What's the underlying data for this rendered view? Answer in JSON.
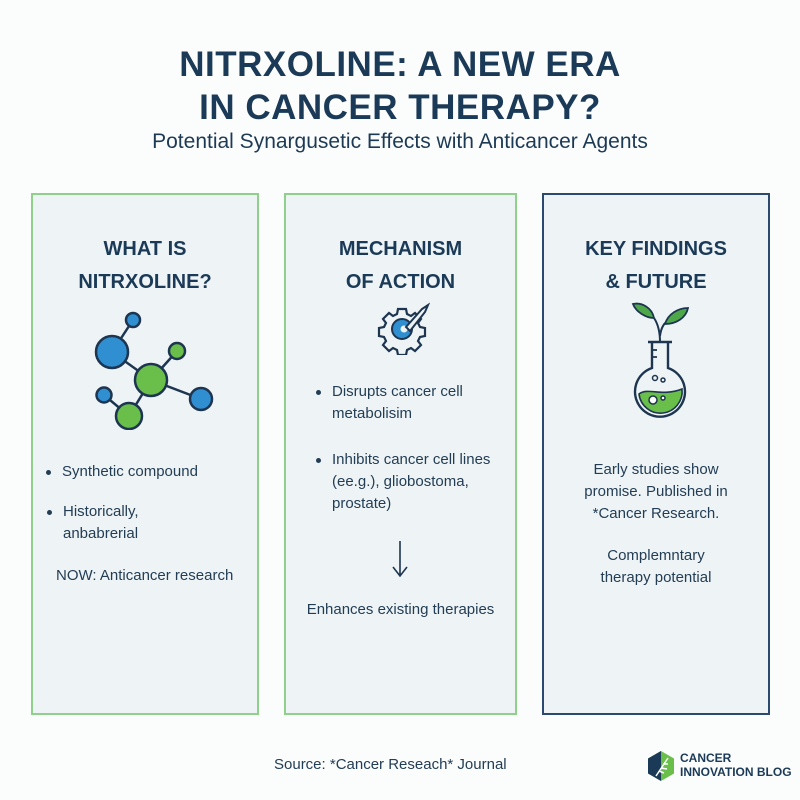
{
  "header": {
    "title_line1": "NITRXOLINE: A NEW ERA",
    "title_line2": "IN CANCER THERAPY?",
    "subtitle": "Potential Synargusetic Effects with Anticancer Agents"
  },
  "panels": [
    {
      "heading_line1": "WHAT IS",
      "heading_line2": "NITRXOLINE?",
      "icon": "molecule-icon",
      "bullets": [
        "Synthetic compound",
        "Historically,",
        "anbabrerial"
      ],
      "note": "NOW: Anticancer research"
    },
    {
      "heading_line1": "MECHANISM",
      "heading_line2": "OF ACTION",
      "icon": "gear-icon",
      "bullets": [
        "Disrupts cancer cell",
        "metabolisim",
        "Inhibits cancer cell lines",
        "(ee.g.), gliobostoma,",
        "prostate)"
      ],
      "arrow": "arrow-down-icon",
      "note": "Enhances existing therapies"
    },
    {
      "heading_line1": "KEY FINDINGS",
      "heading_line2": "& FUTURE",
      "icon": "flask-plant-icon",
      "text1": [
        "Early studies show",
        "promise. Published in",
        "*Cancer Research."
      ],
      "text2": [
        "Complemntary",
        "therapy potential"
      ]
    }
  ],
  "footer": {
    "source": "Source: *Cancer Reseach* Journal",
    "logo_line1": "CANCER",
    "logo_line2": "INNOVATION BLOG"
  },
  "colors": {
    "navy": "#1b3a57",
    "green": "#6abf4b",
    "blue": "#2f8fd0",
    "panel_bg": "#eef4f5",
    "green_border": "#8fd08a"
  }
}
